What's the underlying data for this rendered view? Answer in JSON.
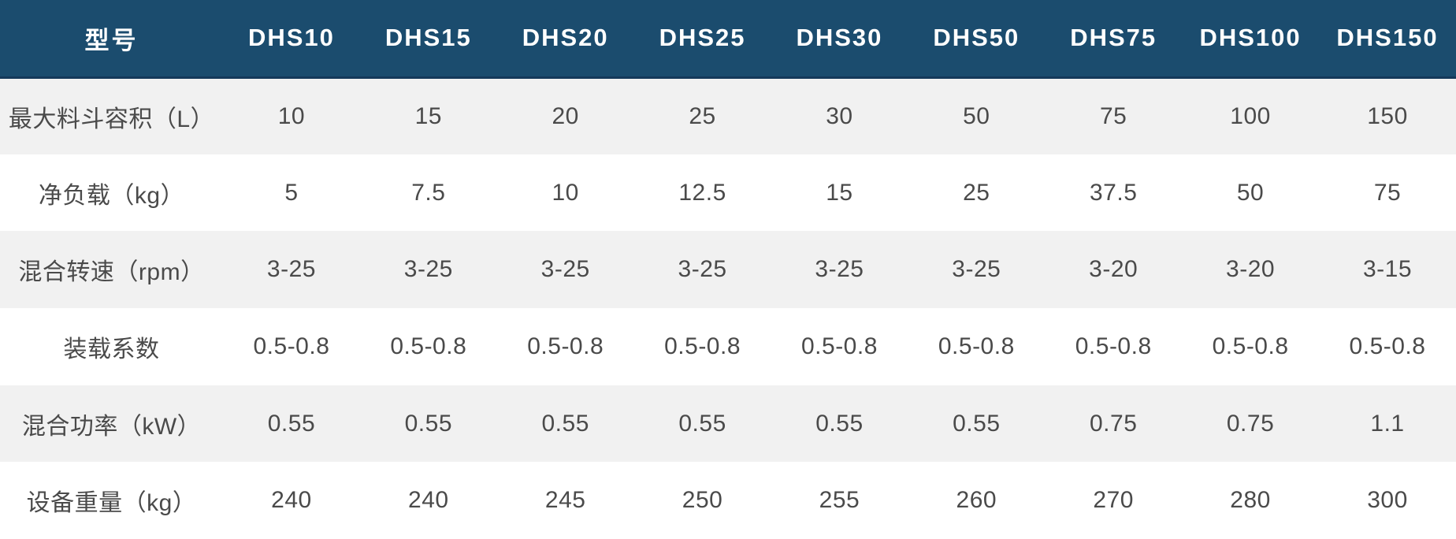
{
  "chart_data": {
    "type": "table",
    "header": {
      "model_label": "型号",
      "columns": [
        "DHS10",
        "DHS15",
        "DHS20",
        "DHS25",
        "DHS30",
        "DHS50",
        "DHS75",
        "DHS100",
        "DHS150"
      ]
    },
    "rows": [
      {
        "label": "最大料斗容积（L）",
        "values": [
          "10",
          "15",
          "20",
          "25",
          "30",
          "50",
          "75",
          "100",
          "150"
        ]
      },
      {
        "label": "净负载（kg）",
        "values": [
          "5",
          "7.5",
          "10",
          "12.5",
          "15",
          "25",
          "37.5",
          "50",
          "75"
        ]
      },
      {
        "label": "混合转速（rpm）",
        "values": [
          "3-25",
          "3-25",
          "3-25",
          "3-25",
          "3-25",
          "3-25",
          "3-20",
          "3-20",
          "3-15"
        ]
      },
      {
        "label": "装载系数",
        "values": [
          "0.5-0.8",
          "0.5-0.8",
          "0.5-0.8",
          "0.5-0.8",
          "0.5-0.8",
          "0.5-0.8",
          "0.5-0.8",
          "0.5-0.8",
          "0.5-0.8"
        ]
      },
      {
        "label": "混合功率（kW）",
        "values": [
          "0.55",
          "0.55",
          "0.55",
          "0.55",
          "0.55",
          "0.55",
          "0.75",
          "0.75",
          "1.1"
        ]
      },
      {
        "label": "设备重量（kg）",
        "values": [
          "240",
          "240",
          "245",
          "250",
          "255",
          "260",
          "270",
          "280",
          "300"
        ]
      }
    ]
  },
  "colors": {
    "header_bg": "#1b4c6e",
    "header_border": "#15395a",
    "header_text": "#ffffff",
    "row_alt_bg": "#f1f1f1",
    "row_bg": "#ffffff",
    "cell_text": "#4a4a4a"
  }
}
